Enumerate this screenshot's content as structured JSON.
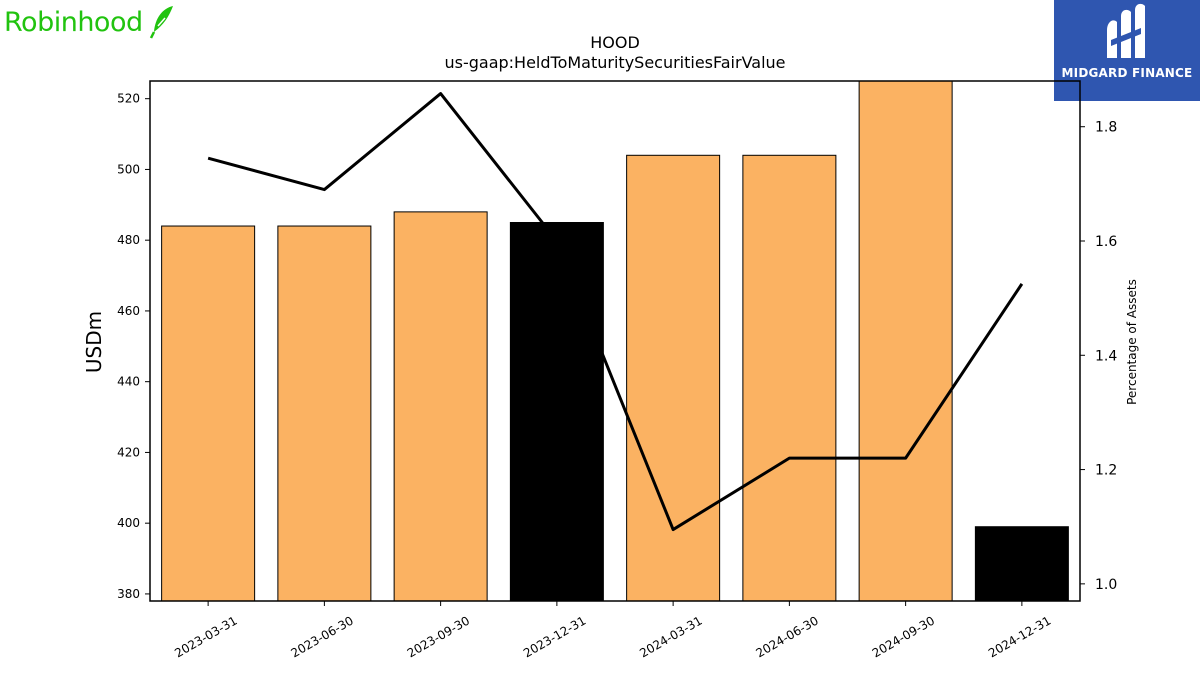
{
  "header": {
    "left_logo_text": "Robinhood",
    "right_logo_text": "MIDGARD FINANCE"
  },
  "colors": {
    "bar_fill": "#fbb262",
    "bar_highlight": "#000000",
    "line": "#000000",
    "robinhood_green": "#21c30f",
    "midgard_blue": "#2f56b0"
  },
  "chart_data": {
    "type": "bar",
    "title": "HOOD",
    "subtitle": "us-gaap:HeldToMaturitySecuritiesFairValue",
    "ylabel": "USDm",
    "y2label": "Percentage of Assets",
    "categories": [
      "2023-03-31",
      "2023-06-30",
      "2023-09-30",
      "2023-12-31",
      "2024-03-31",
      "2024-06-30",
      "2024-09-30",
      "2024-12-31"
    ],
    "series": [
      {
        "axis": "left",
        "values": [
          484,
          484,
          488,
          485,
          504,
          504,
          525,
          399
        ],
        "highlighted": [
          false,
          false,
          false,
          true,
          false,
          false,
          false,
          true
        ]
      },
      {
        "axis": "right",
        "type": "line",
        "values": [
          1.745,
          1.69,
          1.858,
          1.6,
          1.095,
          1.22,
          1.22,
          1.525
        ]
      }
    ],
    "ylim": [
      378,
      525
    ],
    "y2lim": [
      0.97,
      1.88
    ],
    "yticks": [
      380,
      400,
      420,
      440,
      460,
      480,
      500,
      520
    ],
    "y2ticks": [
      1.0,
      1.2,
      1.4,
      1.6,
      1.8
    ],
    "y2tick_labels": [
      "1.0",
      "1.2",
      "1.4",
      "1.6",
      "1.8"
    ],
    "grid": false
  }
}
